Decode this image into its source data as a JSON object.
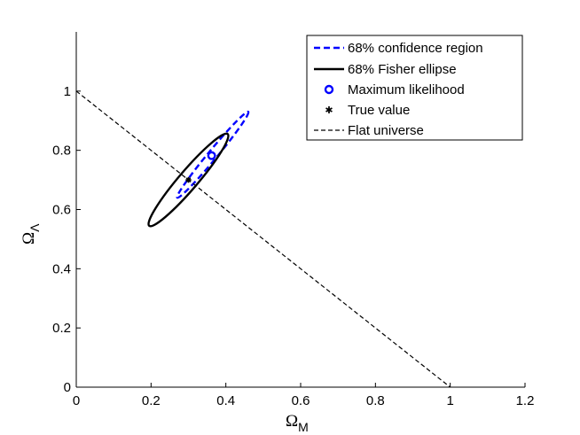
{
  "chart_data": {
    "type": "line",
    "title": "",
    "xlabel": {
      "symbol": "Ω",
      "subscript": "M"
    },
    "ylabel": {
      "symbol": "Ω",
      "subscript": "Λ"
    },
    "xlim": [
      0,
      1.2
    ],
    "ylim": [
      0,
      1.2
    ],
    "xticks": [
      0,
      0.2,
      0.4,
      0.6,
      0.8,
      1,
      1.2
    ],
    "yticks": [
      0,
      0.2,
      0.4,
      0.6,
      0.8,
      1
    ],
    "xtick_labels": [
      "0",
      "0.2",
      "0.4",
      "0.6",
      "0.8",
      "1",
      "1.2"
    ],
    "ytick_labels": [
      "0",
      "0.2",
      "0.4",
      "0.6",
      "0.8",
      "1"
    ],
    "grid": false,
    "legend_position": "top-right",
    "series": [
      {
        "name": "68% confidence region",
        "kind": "ellipse",
        "style": "dashed",
        "color": "#0000ff",
        "center": [
          0.365,
          0.785
        ],
        "major_end_a": [
          0.27,
          0.64
        ],
        "major_end_b": [
          0.46,
          0.93
        ],
        "minor_half_width": 0.012
      },
      {
        "name": "68% Fisher ellipse",
        "kind": "ellipse",
        "style": "solid",
        "color": "#000000",
        "center": [
          0.3,
          0.7
        ],
        "major_end_a": [
          0.195,
          0.545
        ],
        "major_end_b": [
          0.405,
          0.855
        ],
        "minor_half_width": 0.025
      },
      {
        "name": "Maximum likelihood",
        "kind": "marker",
        "marker": "circle",
        "color": "#0000ff",
        "x": [
          0.362
        ],
        "y": [
          0.782
        ]
      },
      {
        "name": "True value",
        "kind": "marker",
        "marker": "star",
        "color": "#000000",
        "x": [
          0.3
        ],
        "y": [
          0.7
        ]
      },
      {
        "name": "Flat universe",
        "kind": "line",
        "style": "dashed",
        "color": "#000000",
        "x": [
          0,
          1
        ],
        "y": [
          1,
          0
        ]
      }
    ]
  }
}
